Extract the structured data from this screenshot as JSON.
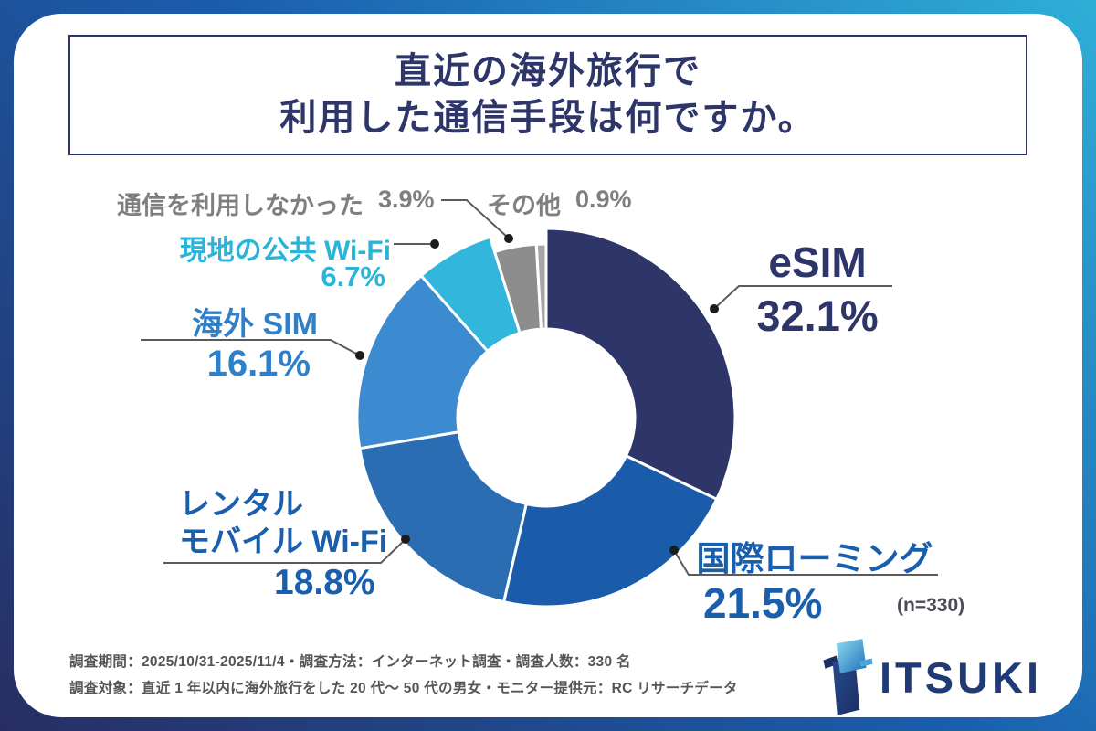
{
  "title": {
    "line1": "直近の海外旅行で",
    "line2": "利用した通信手段は何ですか。"
  },
  "chart_data": {
    "type": "pie",
    "title": "直近の海外旅行で利用した通信手段は何ですか。",
    "donut": true,
    "hole_ratio": 0.47,
    "start_angle_deg": 0,
    "direction": "clockwise",
    "sample_size_label": "(n=330)",
    "segments": [
      {
        "label": "eSIM",
        "value": 32.1,
        "pct_label": "32.1%",
        "color": "#2e3568"
      },
      {
        "label": "国際ローミング",
        "value": 21.5,
        "pct_label": "21.5%",
        "color": "#1a5ca9"
      },
      {
        "label": "レンタルモバイル Wi-Fi",
        "label_lines": [
          "レンタル",
          "モバイル Wi-Fi"
        ],
        "value": 18.8,
        "pct_label": "18.8%",
        "color": "#2a6db3"
      },
      {
        "label": "海外 SIM",
        "value": 16.1,
        "pct_label": "16.1%",
        "color": "#3c8bd1"
      },
      {
        "label": "現地の公共 Wi-Fi",
        "value": 6.7,
        "pct_label": "6.7%",
        "color": "#33b6dc"
      },
      {
        "label": "通信を利用しなかった",
        "value": 3.9,
        "pct_label": "3.9%",
        "color": "#8d8d8d",
        "inset": true
      },
      {
        "label": "その他",
        "value": 0.9,
        "pct_label": "0.9%",
        "color": "#a6a6a6",
        "inset": true
      }
    ]
  },
  "footnote": {
    "line1": "調査期間：2025/10/31-2025/11/4・調査方法：インターネット調査・調査人数：330 名",
    "line2": "調査対象：直近 1 年以内に海外旅行をした 20 代〜 50 代の男女・モニター提供元：RC リサーチデータ"
  },
  "logo": {
    "text": "ITSUKI"
  },
  "colors": {
    "frame_gradient": [
      "#272e62",
      "#1a5dad",
      "#2fafd8"
    ],
    "title_text": "#2e3568",
    "gray_label": "#7f7f7f",
    "leader_line": "#5a5a5a",
    "leader_dot": "#1b1b1b"
  }
}
